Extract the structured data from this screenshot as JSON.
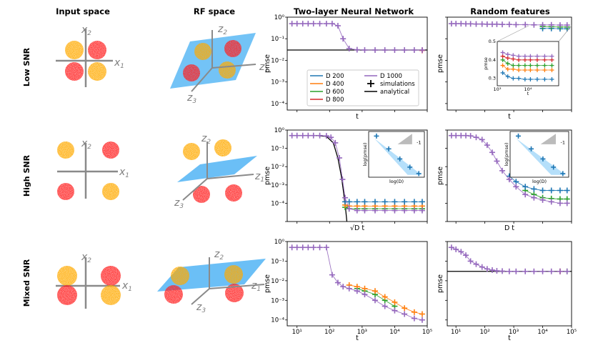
{
  "column_titles": [
    "Input space",
    "RF space",
    "Two-layer Neural Network",
    "Random features"
  ],
  "row_labels": [
    "Low SNR",
    "High SNR",
    "Mixed SNR"
  ],
  "axis_glyphs": {
    "input": [
      "x",
      "2",
      "x",
      "1"
    ],
    "rf": [
      "z",
      "2",
      "z",
      "1",
      "z",
      "3"
    ]
  },
  "colors": {
    "D200": "#1f77b4",
    "D400": "#ff7f0e",
    "D600": "#2ca02c",
    "D800": "#d62728",
    "D1000": "#9467bd",
    "analytical": "#000000",
    "gauss_red": "#ff2020",
    "gauss_orange": "#ffaa00",
    "plane": "#5bb8f5",
    "axis": "#8a8a8a"
  },
  "chart_data": [
    {
      "type": "line",
      "id": "nn-low",
      "title": "Two-layer Neural Network",
      "xlabel": "t",
      "ylabel": "pmse",
      "xscale": "log",
      "yscale": "log",
      "xlim": [
        5,
        100000
      ],
      "ylim": [
        5e-05,
        1
      ],
      "yticks": [
        "10⁰",
        "10⁻¹",
        "10⁻²",
        "10⁻³",
        "10⁻⁴"
      ],
      "legend": {
        "position": "lower-left",
        "entries": [
          "D 200",
          "D 400",
          "D 600",
          "D 800",
          "D 1000",
          "simulations",
          "analytical"
        ]
      },
      "analytical": 0.03,
      "series": [
        {
          "name": "D 1000",
          "x": [
            7,
            10,
            15,
            22,
            32,
            50,
            80,
            120,
            180,
            260,
            400,
            700,
            1200,
            2500,
            5000,
            10000,
            20000,
            40000,
            70000
          ],
          "y": [
            0.5,
            0.5,
            0.5,
            0.5,
            0.5,
            0.5,
            0.5,
            0.5,
            0.4,
            0.1,
            0.035,
            0.031,
            0.03,
            0.03,
            0.03,
            0.03,
            0.03,
            0.03,
            0.03
          ]
        },
        {
          "name": "D 800",
          "x": [
            70000
          ],
          "y": [
            0.029
          ]
        }
      ]
    },
    {
      "type": "line",
      "id": "rf-low",
      "title": "Random features",
      "xlabel": "t",
      "ylabel": "pmse",
      "xscale": "log",
      "yscale": "log",
      "xlim": [
        5,
        100000
      ],
      "ylim": [
        5e-05,
        1
      ],
      "series": [
        {
          "name": "D 1000",
          "x": [
            7,
            10,
            15,
            22,
            32,
            50,
            80,
            120,
            180,
            260,
            400,
            700,
            1200,
            2500,
            5000,
            10000,
            20000,
            40000,
            70000
          ],
          "y": [
            0.5,
            0.5,
            0.5,
            0.49,
            0.49,
            0.48,
            0.48,
            0.47,
            0.47,
            0.47,
            0.46,
            0.46,
            0.45,
            0.45,
            0.44,
            0.44,
            0.44,
            0.43,
            0.43
          ]
        },
        {
          "name": "D 600",
          "x": [
            10000,
            20000,
            40000,
            70000
          ],
          "y": [
            0.37,
            0.36,
            0.35,
            0.35
          ]
        },
        {
          "name": "D 200",
          "x": [
            10000,
            20000,
            40000,
            70000
          ],
          "y": [
            0.3,
            0.3,
            0.29,
            0.29
          ]
        }
      ],
      "inset": {
        "xlabel": "t",
        "ylabel": "pmse",
        "xscale": "log",
        "xlim": [
          1000,
          100000
        ],
        "ylim": [
          0.26,
          0.5
        ],
        "xticks": [
          "10³",
          "10⁴"
        ],
        "yticks": [
          "0.5",
          "0.4",
          "0.3"
        ],
        "series": [
          {
            "name": "D 1000",
            "x": [
              1500,
              2200,
              3300,
              5000,
              8000,
              12000,
              20000,
              35000,
              60000
            ],
            "y": [
              0.44,
              0.43,
              0.425,
              0.42,
              0.42,
              0.42,
              0.42,
              0.42,
              0.42
            ]
          },
          {
            "name": "D 800",
            "x": [
              1500,
              2200,
              3300,
              5000,
              8000,
              12000,
              20000,
              35000,
              60000
            ],
            "y": [
              0.42,
              0.41,
              0.405,
              0.4,
              0.4,
              0.4,
              0.4,
              0.4,
              0.4
            ]
          },
          {
            "name": "D 600",
            "x": [
              1500,
              2200,
              3300,
              5000,
              8000,
              12000,
              20000,
              35000,
              60000
            ],
            "y": [
              0.4,
              0.38,
              0.37,
              0.37,
              0.37,
              0.37,
              0.37,
              0.37,
              0.37
            ]
          },
          {
            "name": "D 400",
            "x": [
              1500,
              2200,
              3300,
              5000,
              8000,
              12000,
              20000,
              35000,
              60000
            ],
            "y": [
              0.37,
              0.35,
              0.35,
              0.345,
              0.345,
              0.345,
              0.345,
              0.345,
              0.345
            ]
          },
          {
            "name": "D 200",
            "x": [
              1500,
              2200,
              3300,
              5000,
              8000,
              12000,
              20000,
              35000,
              60000
            ],
            "y": [
              0.33,
              0.31,
              0.3,
              0.3,
              0.295,
              0.295,
              0.295,
              0.295,
              0.295
            ]
          }
        ]
      }
    },
    {
      "type": "line",
      "id": "nn-high",
      "xlabel": "√D t",
      "ylabel": "pmse",
      "xscale": "log",
      "yscale": "log",
      "xlim": [
        5,
        100000
      ],
      "ylim": [
        1e-05,
        1
      ],
      "yticks": [
        "10⁰",
        "10⁻¹",
        "10⁻²",
        "10⁻³",
        "10⁻⁴"
      ],
      "analytical": [
        [
          7,
          0.5
        ],
        [
          40,
          0.5
        ],
        [
          80,
          0.45
        ],
        [
          130,
          0.2
        ],
        [
          180,
          0.03
        ],
        [
          230,
          0.003
        ],
        [
          270,
          0.0004
        ],
        [
          310,
          5e-05
        ],
        [
          340,
          1e-05
        ]
      ],
      "series": [
        {
          "name": "D 1000",
          "x": [
            7,
            10,
            15,
            22,
            32,
            50,
            80,
            110,
            150,
            200,
            250,
            300,
            400,
            700,
            1200,
            2500,
            5000,
            10000,
            20000,
            40000,
            70000
          ],
          "y": [
            0.5,
            0.5,
            0.5,
            0.5,
            0.5,
            0.5,
            0.48,
            0.4,
            0.2,
            0.03,
            0.002,
            0.0002,
            5e-05,
            4e-05,
            4e-05,
            4e-05,
            4e-05,
            4e-05,
            4e-05,
            4e-05,
            4e-05
          ]
        },
        {
          "name": "D 200",
          "x": [
            300,
            400,
            700,
            1200,
            2500,
            5000,
            10000,
            20000,
            40000,
            70000
          ],
          "y": [
            0.00012,
            0.00012,
            0.00012,
            0.00012,
            0.00012,
            0.00012,
            0.00012,
            0.00012,
            0.00012,
            0.00012
          ]
        },
        {
          "name": "D 400",
          "x": [
            300,
            400,
            700,
            1200,
            2500,
            5000,
            10000,
            20000,
            40000,
            70000
          ],
          "y": [
            8e-05,
            7e-05,
            7e-05,
            7e-05,
            7e-05,
            7e-05,
            7e-05,
            7e-05,
            7e-05,
            7e-05
          ]
        },
        {
          "name": "D 600",
          "x": [
            300,
            400,
            700,
            1200,
            2500,
            5000,
            10000,
            20000,
            40000,
            70000
          ],
          "y": [
            6e-05,
            5e-05,
            5e-05,
            5e-05,
            5e-05,
            5e-05,
            5e-05,
            5e-05,
            5e-05,
            5e-05
          ]
        }
      ],
      "inset": {
        "xlabel": "log(D)",
        "ylabel": "log(pmse)",
        "slope_label": "-1"
      }
    },
    {
      "type": "line",
      "id": "rf-high",
      "xlabel": "D t",
      "ylabel": "pmse",
      "xscale": "log",
      "yscale": "log",
      "xlim": [
        5,
        100000
      ],
      "ylim": [
        1e-05,
        1
      ],
      "series": [
        {
          "name": "D 1000",
          "x": [
            7,
            10,
            15,
            22,
            32,
            50,
            80,
            120,
            180,
            260,
            400,
            700,
            1200,
            2500,
            5000,
            10000,
            20000,
            40000,
            70000
          ],
          "y": [
            0.5,
            0.5,
            0.5,
            0.5,
            0.48,
            0.4,
            0.3,
            0.15,
            0.06,
            0.02,
            0.006,
            0.002,
            0.0008,
            0.0003,
            0.0002,
            0.00015,
            0.00012,
            0.0001,
            0.0001
          ]
        },
        {
          "name": "D 200",
          "x": [
            700,
            1200,
            2500,
            5000,
            10000,
            20000,
            40000,
            70000
          ],
          "y": [
            0.003,
            0.0015,
            0.0008,
            0.0006,
            0.0005,
            0.0005,
            0.0005,
            0.0005
          ]
        },
        {
          "name": "D 600",
          "x": [
            2500,
            5000,
            10000,
            20000,
            40000,
            70000
          ],
          "y": [
            0.0005,
            0.0003,
            0.0002,
            0.00018,
            0.00017,
            0.00017
          ]
        }
      ],
      "inset": {
        "xlabel": "log(D)",
        "ylabel": "log(pmse)",
        "slope_label": "-1"
      }
    },
    {
      "type": "line",
      "id": "nn-mixed",
      "xlabel": "t",
      "ylabel": "pmse",
      "xscale": "log",
      "yscale": "log",
      "xlim": [
        5,
        100000
      ],
      "ylim": [
        5e-05,
        1
      ],
      "yticks": [
        "10⁰",
        "10⁻¹",
        "10⁻²",
        "10⁻³",
        "10⁻⁴"
      ],
      "xticks": [
        "10¹",
        "10²",
        "10³",
        "10⁴",
        "10⁵"
      ],
      "series": [
        {
          "name": "D 1000",
          "x": [
            7,
            10,
            15,
            22,
            32,
            50,
            80,
            120,
            180,
            260,
            400,
            700,
            1200,
            2500,
            5000,
            10000,
            20000,
            40000,
            70000
          ],
          "y": [
            0.5,
            0.5,
            0.5,
            0.5,
            0.5,
            0.5,
            0.5,
            0.02,
            0.008,
            0.005,
            0.004,
            0.003,
            0.002,
            0.001,
            0.0005,
            0.0003,
            0.0002,
            0.00012,
            0.0001
          ]
        },
        {
          "name": "D 400",
          "x": [
            400,
            700,
            1200,
            2500,
            5000,
            10000,
            20000,
            40000,
            70000
          ],
          "y": [
            0.006,
            0.005,
            0.004,
            0.003,
            0.0015,
            0.0008,
            0.0004,
            0.00025,
            0.0002
          ]
        },
        {
          "name": "D 600",
          "x": [
            700,
            1200,
            2500,
            5000,
            10000
          ],
          "y": [
            0.004,
            0.003,
            0.002,
            0.001,
            0.0005
          ]
        }
      ]
    },
    {
      "type": "line",
      "id": "rf-mixed",
      "xlabel": "t",
      "ylabel": "pmse",
      "xscale": "log",
      "yscale": "log",
      "xlim": [
        5,
        100000
      ],
      "ylim": [
        5e-05,
        1
      ],
      "xticks": [
        "10¹",
        "10²",
        "10³",
        "10⁴",
        "10⁵"
      ],
      "analytical": 0.03,
      "series": [
        {
          "name": "D 1000",
          "x": [
            7,
            10,
            15,
            22,
            32,
            50,
            80,
            120,
            180,
            260,
            400,
            700,
            1200,
            2500,
            5000,
            10000,
            20000,
            40000,
            70000
          ],
          "y": [
            0.5,
            0.4,
            0.3,
            0.2,
            0.1,
            0.07,
            0.05,
            0.04,
            0.035,
            0.032,
            0.031,
            0.03,
            0.03,
            0.03,
            0.03,
            0.03,
            0.03,
            0.03,
            0.03
          ]
        },
        {
          "name": "D 800",
          "x": [
            40000
          ],
          "y": [
            0.03
          ]
        },
        {
          "name": "D 600",
          "x": [
            70000
          ],
          "y": [
            0.03
          ]
        }
      ]
    }
  ]
}
